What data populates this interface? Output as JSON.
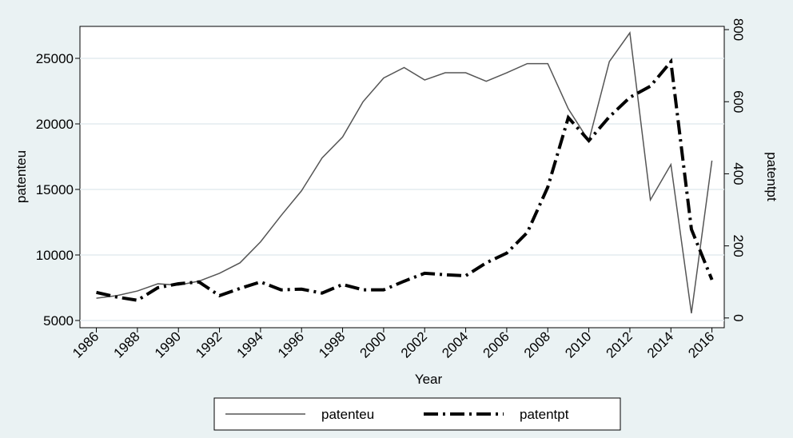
{
  "chart_data": {
    "type": "line",
    "x": [
      1986,
      1987,
      1988,
      1989,
      1990,
      1991,
      1992,
      1993,
      1994,
      1995,
      1996,
      1997,
      1998,
      1999,
      2000,
      2001,
      2002,
      2003,
      2004,
      2005,
      2006,
      2007,
      2008,
      2009,
      2010,
      2011,
      2012,
      2013,
      2014,
      2015,
      2016
    ],
    "x_label": "Year",
    "y_label": "patenteu",
    "y2_label": "patentpt",
    "series": [
      {
        "name": "patenteu",
        "color": "#555555",
        "line_style": "solid",
        "width": 1.5,
        "values": [
          6700,
          6900,
          7250,
          7800,
          7700,
          8000,
          8600,
          9400,
          11000,
          13000,
          14900,
          17400,
          19000,
          21700,
          23500,
          24300,
          23350,
          23900,
          23900,
          23250,
          23900,
          24600,
          24600,
          21150,
          18700,
          24750,
          26950,
          14200,
          16900,
          5550,
          17200
        ]
      },
      {
        "name": "patentpt",
        "color": "#000000",
        "line_style": "dashdot",
        "width": 4,
        "axis": "y2",
        "values": [
          71,
          58,
          49,
          84,
          95,
          100,
          62,
          82,
          100,
          78,
          80,
          69,
          93,
          78,
          78,
          102,
          124,
          120,
          117,
          153,
          180,
          237,
          363,
          556,
          492,
          558,
          612,
          643,
          711,
          246,
          106
        ]
      }
    ],
    "xlim": [
      1985.2,
      2016.6
    ],
    "xticks": [
      1986,
      1988,
      1990,
      1992,
      1994,
      1996,
      1998,
      2000,
      2002,
      2004,
      2006,
      2008,
      2010,
      2012,
      2014,
      2016
    ],
    "ylim": [
      4450,
      27440
    ],
    "yticks": [
      5000,
      10000,
      15000,
      20000,
      25000
    ],
    "y2lim": [
      -27,
      809
    ],
    "y2ticks": [
      0,
      200,
      400,
      600,
      800
    ],
    "grid": true,
    "legend": "bottom"
  }
}
